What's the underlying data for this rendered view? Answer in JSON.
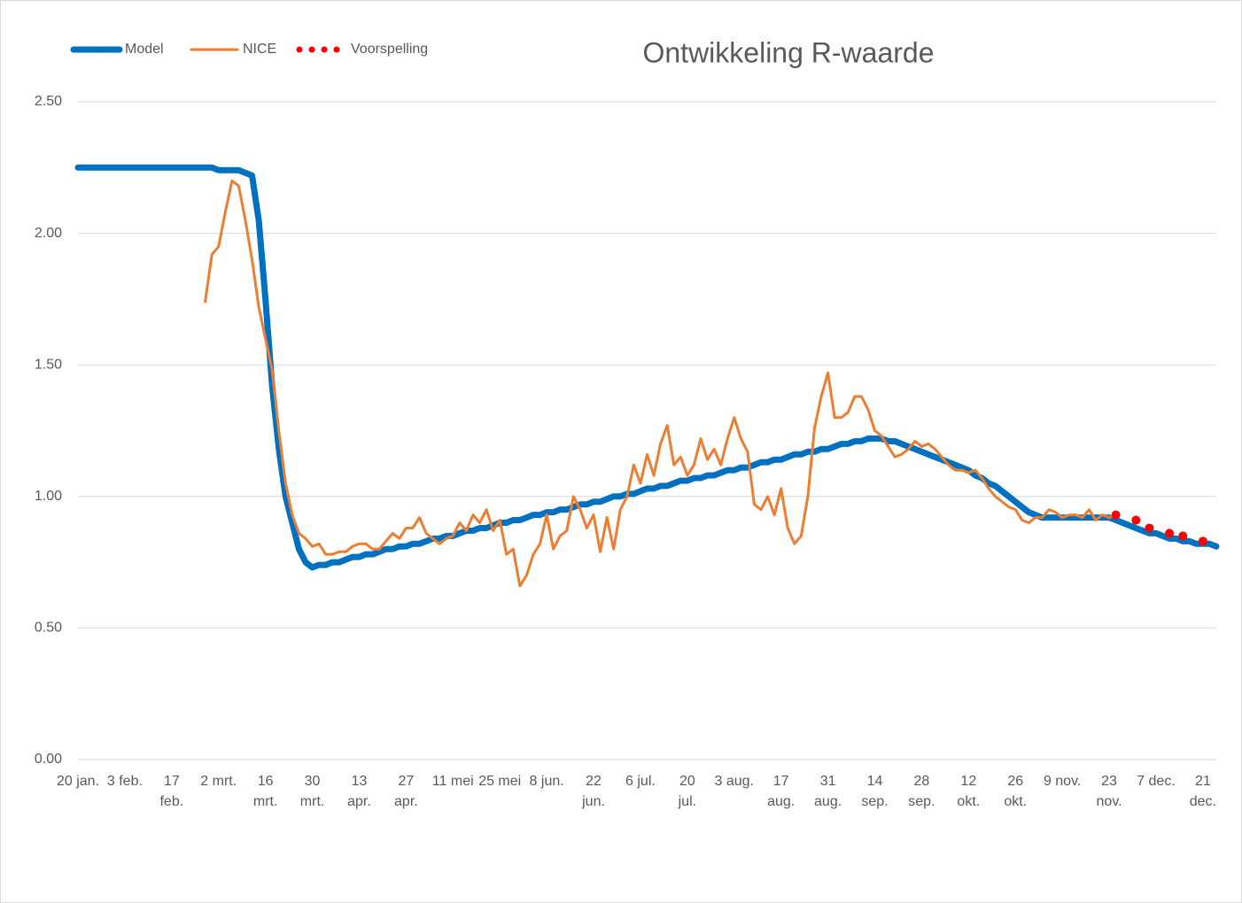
{
  "chart_data": {
    "type": "line",
    "title": "Ontwikkeling R-waarde",
    "categories": [
      "20 jan.",
      null,
      null,
      null,
      null,
      null,
      null,
      "3 feb.",
      null,
      null,
      null,
      null,
      null,
      null,
      "17 feb.",
      null,
      null,
      null,
      null,
      null,
      null,
      "2 mrt.",
      null,
      null,
      null,
      null,
      null,
      null,
      "16 mrt.",
      null,
      null,
      null,
      null,
      null,
      null,
      "30 mrt.",
      null,
      null,
      null,
      null,
      null,
      null,
      "13 apr.",
      null,
      null,
      null,
      null,
      null,
      null,
      "27 apr.",
      null,
      null,
      null,
      null,
      null,
      null,
      "11 mei",
      null,
      null,
      null,
      null,
      null,
      null,
      "25 mei",
      null,
      null,
      null,
      null,
      null,
      null,
      "8 jun.",
      null,
      null,
      null,
      null,
      null,
      null,
      "22 jun.",
      null,
      null,
      null,
      null,
      null,
      null,
      "6 jul.",
      null,
      null,
      null,
      null,
      null,
      null,
      "20 jul.",
      null,
      null,
      null,
      null,
      null,
      null,
      "3 aug.",
      null,
      null,
      null,
      null,
      null,
      null,
      "17 aug.",
      null,
      null,
      null,
      null,
      null,
      null,
      "31 aug.",
      null,
      null,
      null,
      null,
      null,
      null,
      "14 sep.",
      null,
      null,
      null,
      null,
      null,
      null,
      "28 sep.",
      null,
      null,
      null,
      null,
      null,
      null,
      "12 okt.",
      null,
      null,
      null,
      null,
      null,
      null,
      "26 okt.",
      null,
      null,
      null,
      null,
      null,
      null,
      "9 nov.",
      null,
      null,
      null,
      null,
      null,
      null,
      "23 nov.",
      null,
      null,
      null,
      null,
      null,
      null,
      "7 dec.",
      null,
      null,
      null,
      null,
      null,
      null,
      "21 dec.",
      null,
      null
    ],
    "series": [
      {
        "name": "Model",
        "color": "#0070c0",
        "style": "line",
        "width": 7,
        "values": [
          2.25,
          2.25,
          2.25,
          2.25,
          2.25,
          2.25,
          2.25,
          2.25,
          2.25,
          2.25,
          2.25,
          2.25,
          2.25,
          2.25,
          2.25,
          2.25,
          2.25,
          2.25,
          2.25,
          2.25,
          2.25,
          2.24,
          2.24,
          2.24,
          2.24,
          2.23,
          2.22,
          2.05,
          1.75,
          1.42,
          1.18,
          1.0,
          0.9,
          0.8,
          0.75,
          0.73,
          0.74,
          0.74,
          0.75,
          0.75,
          0.76,
          0.77,
          0.77,
          0.78,
          0.78,
          0.79,
          0.8,
          0.8,
          0.81,
          0.81,
          0.82,
          0.82,
          0.83,
          0.84,
          0.84,
          0.85,
          0.85,
          0.86,
          0.87,
          0.87,
          0.88,
          0.88,
          0.89,
          0.9,
          0.9,
          0.91,
          0.91,
          0.92,
          0.93,
          0.93,
          0.94,
          0.94,
          0.95,
          0.95,
          0.96,
          0.97,
          0.97,
          0.98,
          0.98,
          0.99,
          1.0,
          1.0,
          1.01,
          1.01,
          1.02,
          1.03,
          1.03,
          1.04,
          1.04,
          1.05,
          1.06,
          1.06,
          1.07,
          1.07,
          1.08,
          1.08,
          1.09,
          1.1,
          1.1,
          1.11,
          1.11,
          1.12,
          1.13,
          1.13,
          1.14,
          1.14,
          1.15,
          1.16,
          1.16,
          1.17,
          1.17,
          1.18,
          1.18,
          1.19,
          1.2,
          1.2,
          1.21,
          1.21,
          1.22,
          1.22,
          1.22,
          1.21,
          1.21,
          1.2,
          1.19,
          1.18,
          1.17,
          1.16,
          1.15,
          1.14,
          1.13,
          1.12,
          1.11,
          1.1,
          1.08,
          1.07,
          1.05,
          1.04,
          1.02,
          1.0,
          0.98,
          0.96,
          0.94,
          0.93,
          0.92,
          0.92,
          0.92,
          0.92,
          0.92,
          0.92,
          0.92,
          0.92,
          0.92,
          0.92,
          0.92,
          0.91,
          0.9,
          0.89,
          0.88,
          0.87,
          0.86,
          0.86,
          0.85,
          0.84,
          0.84,
          0.83,
          0.83,
          0.82,
          0.82,
          0.82,
          0.81
        ]
      },
      {
        "name": "NICE",
        "color": "#ed7d31",
        "style": "line",
        "width": 3,
        "values": [
          null,
          null,
          null,
          null,
          null,
          null,
          null,
          null,
          null,
          null,
          null,
          null,
          null,
          null,
          null,
          null,
          null,
          null,
          null,
          1.74,
          1.92,
          1.95,
          2.08,
          2.2,
          2.18,
          2.05,
          1.9,
          1.72,
          1.6,
          1.48,
          1.25,
          1.05,
          0.93,
          0.86,
          0.84,
          0.81,
          0.82,
          0.78,
          0.78,
          0.79,
          0.79,
          0.81,
          0.82,
          0.82,
          0.8,
          0.8,
          0.83,
          0.86,
          0.84,
          0.88,
          0.88,
          0.92,
          0.86,
          0.84,
          0.82,
          0.84,
          0.85,
          0.9,
          0.87,
          0.93,
          0.9,
          0.95,
          0.87,
          0.91,
          0.78,
          0.8,
          0.66,
          0.7,
          0.78,
          0.82,
          0.93,
          0.8,
          0.85,
          0.87,
          1.0,
          0.95,
          0.88,
          0.93,
          0.79,
          0.92,
          0.8,
          0.95,
          1.0,
          1.12,
          1.05,
          1.16,
          1.08,
          1.2,
          1.27,
          1.12,
          1.15,
          1.08,
          1.12,
          1.22,
          1.14,
          1.18,
          1.12,
          1.22,
          1.3,
          1.22,
          1.17,
          0.97,
          0.95,
          1.0,
          0.93,
          1.03,
          0.88,
          0.82,
          0.85,
          1.0,
          1.26,
          1.38,
          1.47,
          1.3,
          1.3,
          1.32,
          1.38,
          1.38,
          1.33,
          1.25,
          1.23,
          1.19,
          1.15,
          1.16,
          1.18,
          1.21,
          1.19,
          1.2,
          1.18,
          1.15,
          1.12,
          1.1,
          1.1,
          1.09,
          1.1,
          1.07,
          1.03,
          1.0,
          0.98,
          0.96,
          0.95,
          0.91,
          0.9,
          0.92,
          0.92,
          0.95,
          0.94,
          0.92,
          0.93,
          0.93,
          0.92,
          0.95,
          0.91,
          0.93,
          0.92,
          0.93,
          null,
          null,
          null,
          null,
          null,
          null,
          null,
          null,
          null,
          null,
          null,
          null,
          null,
          null,
          null
        ]
      },
      {
        "name": "Voorspelling",
        "color": "#ff0000",
        "style": "dots",
        "width": 5,
        "values": [
          null,
          null,
          null,
          null,
          null,
          null,
          null,
          null,
          null,
          null,
          null,
          null,
          null,
          null,
          null,
          null,
          null,
          null,
          null,
          null,
          null,
          null,
          null,
          null,
          null,
          null,
          null,
          null,
          null,
          null,
          null,
          null,
          null,
          null,
          null,
          null,
          null,
          null,
          null,
          null,
          null,
          null,
          null,
          null,
          null,
          null,
          null,
          null,
          null,
          null,
          null,
          null,
          null,
          null,
          null,
          null,
          null,
          null,
          null,
          null,
          null,
          null,
          null,
          null,
          null,
          null,
          null,
          null,
          null,
          null,
          null,
          null,
          null,
          null,
          null,
          null,
          null,
          null,
          null,
          null,
          null,
          null,
          null,
          null,
          null,
          null,
          null,
          null,
          null,
          null,
          null,
          null,
          null,
          null,
          null,
          null,
          null,
          null,
          null,
          null,
          null,
          null,
          null,
          null,
          null,
          null,
          null,
          null,
          null,
          null,
          null,
          null,
          null,
          null,
          null,
          null,
          null,
          null,
          null,
          null,
          null,
          null,
          null,
          null,
          null,
          null,
          null,
          null,
          null,
          null,
          null,
          null,
          null,
          null,
          null,
          null,
          null,
          null,
          null,
          null,
          null,
          null,
          null,
          null,
          null,
          null,
          null,
          null,
          null,
          null,
          null,
          null,
          null,
          null,
          null,
          0.93,
          null,
          null,
          0.91,
          null,
          0.88,
          null,
          null,
          0.86,
          null,
          0.85,
          null,
          null,
          0.83,
          null,
          null
        ]
      }
    ],
    "ylim": [
      0,
      2.5
    ],
    "yticks": [
      {
        "value": 0,
        "label": "0.00"
      },
      {
        "value": 0.5,
        "label": "0.50"
      },
      {
        "value": 1,
        "label": "1.00"
      },
      {
        "value": 1.5,
        "label": "1.50"
      },
      {
        "value": 2,
        "label": "2.00"
      },
      {
        "value": 2.5,
        "label": "2.50"
      }
    ],
    "grid": true,
    "legend": "top-left"
  }
}
